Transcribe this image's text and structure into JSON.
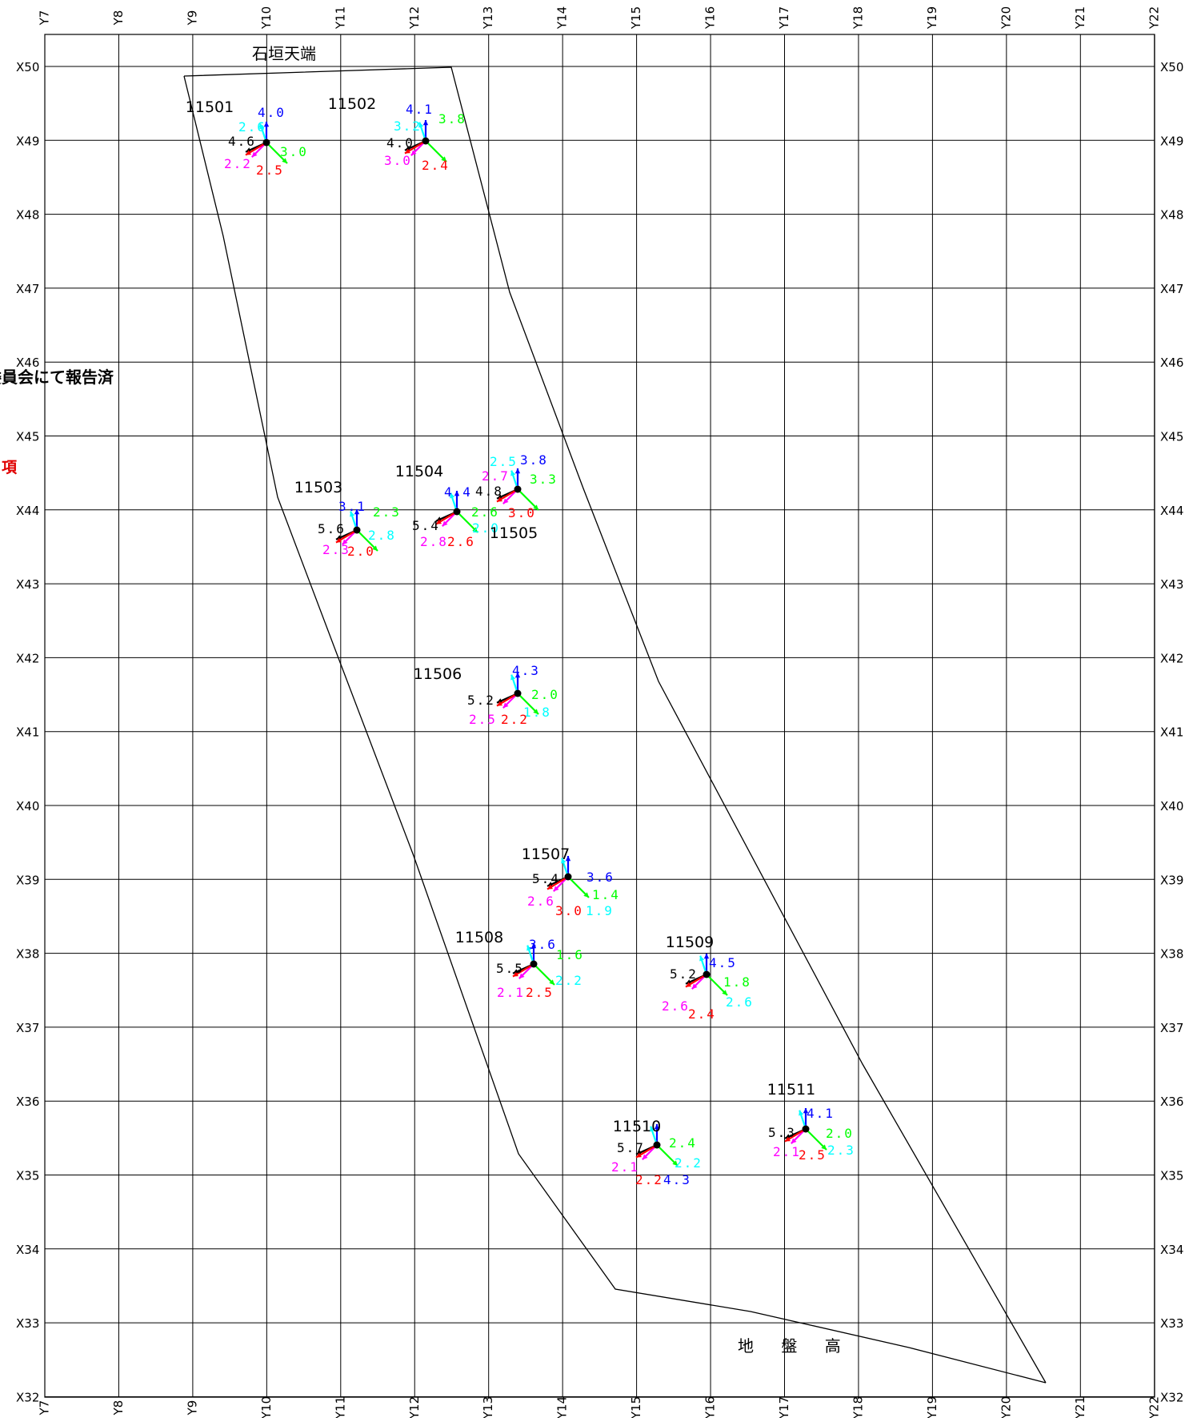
{
  "grid": {
    "y_labels": [
      "Y7",
      "Y8",
      "Y9",
      "Y10",
      "Y11",
      "Y12",
      "Y13",
      "Y14",
      "Y15",
      "Y16",
      "Y17",
      "Y18",
      "Y19",
      "Y20",
      "Y21",
      "Y22"
    ],
    "x_labels": [
      "X50",
      "X49",
      "X48",
      "X47",
      "X46",
      "X45",
      "X44",
      "X43",
      "X42",
      "X41",
      "X40",
      "X39",
      "X38",
      "X37",
      "X36",
      "X35",
      "X34",
      "X33",
      "X32"
    ]
  },
  "annotations": {
    "top_label": "石垣天端",
    "side_note": "委員会にて報告済",
    "side_red": "項",
    "bottom_label": "地 盤 高"
  },
  "colors": {
    "black": "#000000",
    "blue": "#0000ff",
    "green": "#00ff00",
    "cyan": "#00ffff",
    "magenta": "#ff00ff",
    "red": "#ff0000"
  },
  "points": [
    {
      "id": "11501",
      "k": "4.6",
      "b": "4.0",
      "g": "3.0",
      "c": "2.6",
      "m": "2.2",
      "r": "2.5"
    },
    {
      "id": "11502",
      "k": "4.0",
      "b": "4.1",
      "g": "3.8",
      "c": "3.2",
      "m": "3.0",
      "r": "2.4"
    },
    {
      "id": "11503",
      "k": "5.6",
      "b": "3.1",
      "g": "2.3",
      "c": "2.8",
      "m": "2.3",
      "r": "2.0"
    },
    {
      "id": "11504",
      "k": "5.4",
      "b": "4.4",
      "g": "2.6",
      "c": "2.0",
      "m": "2.8",
      "r": "2.6"
    },
    {
      "id": "11505",
      "k": "4.8",
      "b": "3.8",
      "g": "3.3",
      "c": "2.5",
      "m": "2.7",
      "r": "3.0"
    },
    {
      "id": "11506",
      "k": "5.2",
      "b": "4.3",
      "g": "2.0",
      "c": "1.8",
      "m": "2.5",
      "r": "2.2"
    },
    {
      "id": "11507",
      "k": "5.4",
      "b": "3.6",
      "g": "1.4",
      "c": "1.9",
      "m": "2.6",
      "r": "3.0"
    },
    {
      "id": "11508",
      "k": "5.5",
      "b": "3.6",
      "g": "1.6",
      "c": "2.2",
      "m": "2.1",
      "r": "2.5"
    },
    {
      "id": "11509",
      "k": "5.2",
      "b": "4.5",
      "g": "1.8",
      "c": "2.6",
      "m": "2.6",
      "r": "2.4"
    },
    {
      "id": "11510",
      "k": "5.7",
      "b": "4.3",
      "g": "2.4",
      "c": "2.2",
      "m": "2.1",
      "r": "2.2"
    },
    {
      "id": "11511",
      "k": "5.3",
      "b": "4.1",
      "g": "2.0",
      "c": "2.3",
      "m": "2.1",
      "r": "2.5"
    }
  ]
}
